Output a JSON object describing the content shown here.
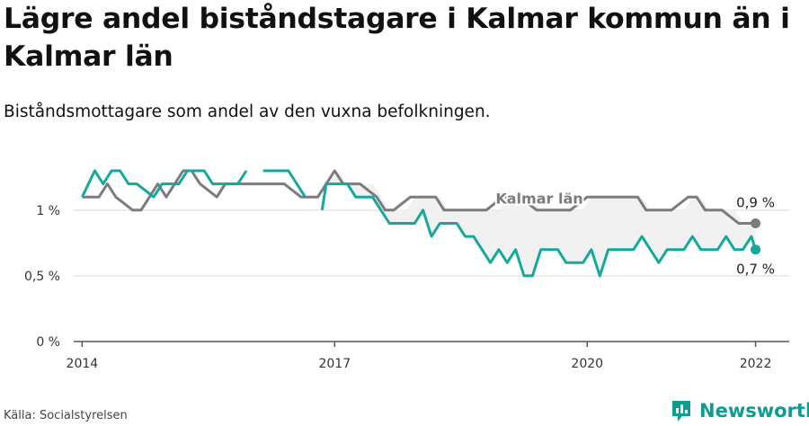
{
  "title": "Lägre andel biståndstagare i Kalmar kommun än i Kalmar län",
  "subtitle": "Biståndsmottagare som andel av den vuxna befolkningen.",
  "source": "Källa: Socialstyrelsen",
  "brand": "Newsworthy",
  "colors": {
    "kommun": "#14a99b",
    "lan": "#7b7b80",
    "fill": "#efefef",
    "grid": "#d9d9d9",
    "brand": "#0f9d8f"
  },
  "chart_data": {
    "type": "line",
    "ylim": [
      0,
      1.3
    ],
    "yticks": [
      0,
      0.5,
      1.0
    ],
    "yticklabels": [
      "0 %",
      "0,5 %",
      "1 %"
    ],
    "xlim": [
      2013.9,
      2022.4
    ],
    "xticks": [
      2014,
      2017,
      2020,
      2022
    ],
    "xticklabels": [
      "2014",
      "2017",
      "2020",
      "2022"
    ],
    "series": [
      {
        "name": "Kalmar län",
        "end_label": "0,9 %",
        "x": [
          2014.0,
          2014.2,
          2014.3,
          2014.4,
          2014.6,
          2014.7,
          2014.8,
          2014.9,
          2015.0,
          2015.1,
          2015.2,
          2015.3,
          2015.4,
          2015.6,
          2015.7,
          2015.8,
          2015.9,
          2016.0,
          2016.2,
          2016.4,
          2016.6,
          2016.8,
          2016.9,
          2017.0,
          2017.1,
          2017.2,
          2017.3,
          2017.5,
          2017.6,
          2017.7,
          2017.9,
          2018.0,
          2018.2,
          2018.3,
          2018.4,
          2018.6,
          2018.8,
          2019.0,
          2019.2,
          2019.4,
          2019.6,
          2019.8,
          2020.0,
          2020.2,
          2020.4,
          2020.6,
          2020.7,
          2020.8,
          2021.0,
          2021.2,
          2021.3,
          2021.4,
          2021.5,
          2021.6,
          2021.8,
          2021.9,
          2022.0
        ],
        "values": [
          1.1,
          1.1,
          1.2,
          1.1,
          1.0,
          1.0,
          1.1,
          1.2,
          1.1,
          1.2,
          1.3,
          1.3,
          1.2,
          1.1,
          1.2,
          1.2,
          1.2,
          1.2,
          1.2,
          1.2,
          1.1,
          1.1,
          1.2,
          1.3,
          1.2,
          1.2,
          1.2,
          1.1,
          1.0,
          1.0,
          1.1,
          1.1,
          1.1,
          1.0,
          1.0,
          1.0,
          1.0,
          1.1,
          1.1,
          1.0,
          1.0,
          1.0,
          1.1,
          1.1,
          1.1,
          1.1,
          1.0,
          1.0,
          1.0,
          1.1,
          1.1,
          1.0,
          1.0,
          1.0,
          0.9,
          0.9,
          0.9
        ]
      },
      {
        "name": "Kalmar kommun",
        "end_label": "0,7 %",
        "segments": [
          {
            "x": [
              2014.0,
              2014.15,
              2014.25,
              2014.35,
              2014.45,
              2014.55,
              2014.65,
              2014.85,
              2014.95,
              2015.05,
              2015.15,
              2015.25,
              2015.45,
              2015.55,
              2015.65,
              2015.75,
              2015.85,
              2015.95
            ],
            "values": [
              1.1,
              1.3,
              1.2,
              1.3,
              1.3,
              1.2,
              1.2,
              1.1,
              1.2,
              1.2,
              1.2,
              1.3,
              1.3,
              1.2,
              1.2,
              1.2,
              1.2,
              1.3
            ]
          },
          {
            "x": [
              2016.15,
              2016.35,
              2016.45,
              2016.55,
              2016.65
            ],
            "values": [
              1.3,
              1.3,
              1.3,
              1.2,
              1.1
            ]
          },
          {
            "x": [
              2016.85,
              2016.9,
              2017.05,
              2017.15,
              2017.25,
              2017.35,
              2017.45,
              2017.55,
              2017.65,
              2017.75,
              2017.85,
              2017.95,
              2018.05,
              2018.15,
              2018.25,
              2018.35,
              2018.45,
              2018.55,
              2018.65,
              2018.75,
              2018.85,
              2018.95,
              2019.05,
              2019.15,
              2019.25,
              2019.35,
              2019.45,
              2019.55,
              2019.65,
              2019.75,
              2019.85,
              2019.95,
              2020.05,
              2020.15,
              2020.25,
              2020.35,
              2020.45,
              2020.55,
              2020.65,
              2020.75,
              2020.85,
              2020.95,
              2021.05,
              2021.15,
              2021.25,
              2021.35,
              2021.45,
              2021.55,
              2021.65,
              2021.75,
              2021.85,
              2021.95,
              2022.0
            ],
            "values": [
              1.0,
              1.2,
              1.2,
              1.2,
              1.1,
              1.1,
              1.1,
              1.0,
              0.9,
              0.9,
              0.9,
              0.9,
              1.0,
              0.8,
              0.9,
              0.9,
              0.9,
              0.8,
              0.8,
              0.7,
              0.6,
              0.7,
              0.6,
              0.7,
              0.5,
              0.5,
              0.7,
              0.7,
              0.7,
              0.6,
              0.6,
              0.6,
              0.7,
              0.5,
              0.7,
              0.7,
              0.7,
              0.7,
              0.8,
              0.7,
              0.6,
              0.7,
              0.7,
              0.7,
              0.8,
              0.7,
              0.7,
              0.7,
              0.8,
              0.7,
              0.7,
              0.8,
              0.7
            ]
          }
        ]
      }
    ],
    "annotations": [
      {
        "text": "Kalmar län",
        "series": "Kalmar län"
      }
    ]
  }
}
